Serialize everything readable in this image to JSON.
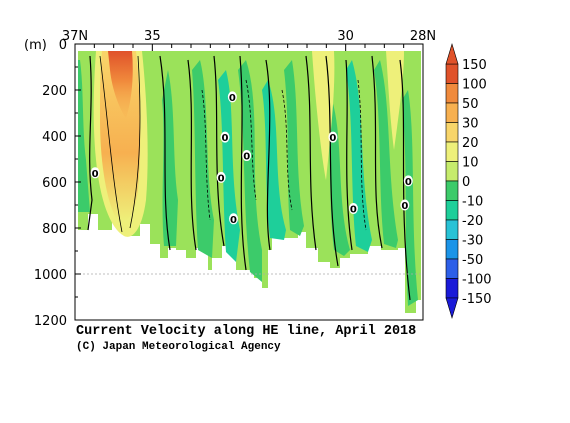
{
  "chart_data": {
    "type": "heatmap",
    "title": "Current Velocity along HE line, April 2018",
    "credit": "(C) Japan Meteorological Agency",
    "ylabel": "(m)",
    "x_ticks": [
      {
        "value": 37,
        "label": "37N"
      },
      {
        "value": 35,
        "label": "35"
      },
      {
        "value": 30,
        "label": "30"
      },
      {
        "value": 28,
        "label": "28N"
      }
    ],
    "xlim": [
      37,
      28
    ],
    "y_ticks": [
      0,
      200,
      400,
      600,
      800,
      1000,
      1200
    ],
    "ylim": [
      0,
      1200
    ],
    "reference_depth": 1000,
    "colorbar": {
      "tick_labels": [
        "150",
        "100",
        "50",
        "30",
        "20",
        "10",
        "0",
        "-10",
        "-20",
        "-30",
        "-50",
        "-100",
        "-150"
      ],
      "colors": [
        "#e0522a",
        "#f08a3c",
        "#f7b050",
        "#f8d56a",
        "#eef07a",
        "#c6ec6c",
        "#86dc4a",
        "#3ccb6a",
        "#1ecf9a",
        "#28c2d6",
        "#1b94e8",
        "#2d5fe8",
        "#1a1ad8"
      ]
    },
    "contour_labels": [
      {
        "text": "0",
        "lat": 36.48,
        "depth": 560
      },
      {
        "text": "0",
        "lat": 33.22,
        "depth": 580
      },
      {
        "text": "0",
        "lat": 32.93,
        "depth": 230
      },
      {
        "text": "0",
        "lat": 33.12,
        "depth": 405
      },
      {
        "text": "0",
        "lat": 32.56,
        "depth": 485
      },
      {
        "text": "0",
        "lat": 32.9,
        "depth": 760
      },
      {
        "text": "0",
        "lat": 30.33,
        "depth": 405
      },
      {
        "text": "0",
        "lat": 29.8,
        "depth": 715
      },
      {
        "text": "0",
        "lat": 28.47,
        "depth": 700
      },
      {
        "text": "0",
        "lat": 28.38,
        "depth": 595
      }
    ]
  }
}
